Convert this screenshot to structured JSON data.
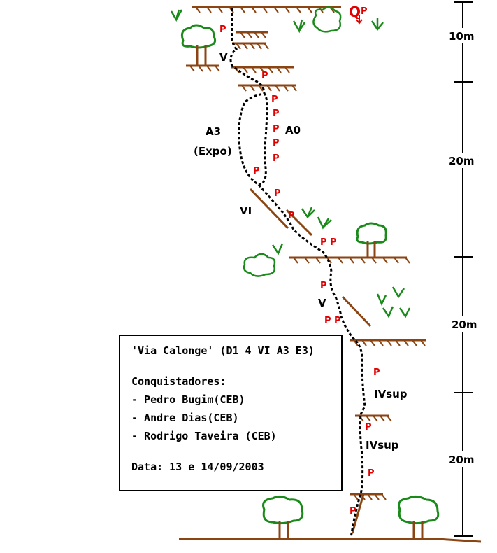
{
  "route": {
    "title_line": "'Via Calonge' (D1 4 VI A3 E3)",
    "authors_heading": "Conquistadores:",
    "authors": [
      "- Pedro Bugim(CEB)",
      "- Andre Dias(CEB)",
      "- Rodrigo Taveira (CEB)"
    ],
    "date_line": "Data: 13 e 14/09/2003"
  },
  "grades": {
    "v_top": "V",
    "a3": "A3",
    "expo": "(Expo)",
    "a0": "A0",
    "vi": "VI",
    "v_mid": "V",
    "ivsup_1": "IVsup",
    "ivsup_2": "IVsup"
  },
  "scale": {
    "section_1": "10m",
    "section_2": "20m",
    "section_3": "20m",
    "section_4": "20m"
  },
  "markers": {
    "piton": "P",
    "top_symbol": "Q"
  },
  "colors": {
    "ledge": "#8b4513",
    "route": "#000000",
    "piton": "#e00000",
    "vegetation": "#1a8a1a",
    "scale": "#000000"
  }
}
